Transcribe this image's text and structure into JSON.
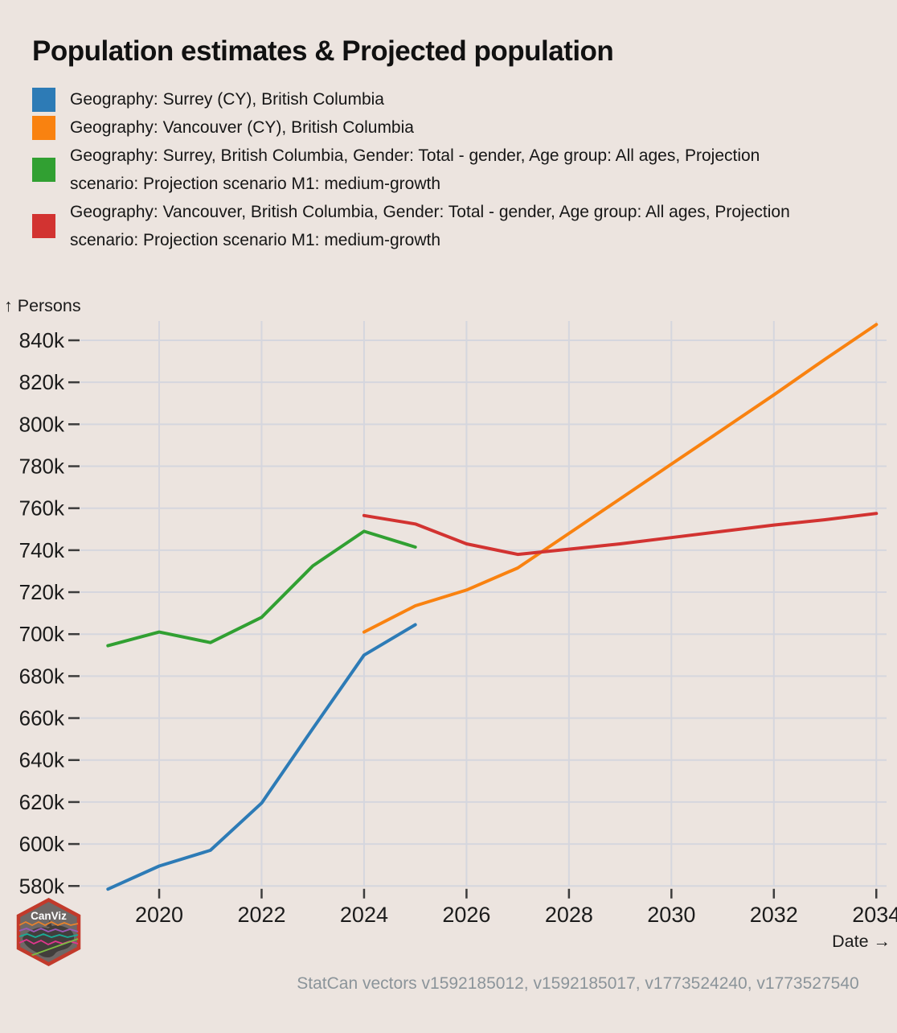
{
  "title": "Population estimates & Projected population",
  "footer": "StatCan vectors v1592185012, v1592185017, v1773524240, v1773527540",
  "logo": {
    "text": "CanViz"
  },
  "axes": {
    "y": {
      "title": "↑ Persons",
      "ticks": [
        {
          "value": 580,
          "label": "580k"
        },
        {
          "value": 600,
          "label": "600k"
        },
        {
          "value": 620,
          "label": "620k"
        },
        {
          "value": 640,
          "label": "640k"
        },
        {
          "value": 660,
          "label": "660k"
        },
        {
          "value": 680,
          "label": "680k"
        },
        {
          "value": 700,
          "label": "700k"
        },
        {
          "value": 720,
          "label": "720k"
        },
        {
          "value": 740,
          "label": "740k"
        },
        {
          "value": 760,
          "label": "760k"
        },
        {
          "value": 780,
          "label": "780k"
        },
        {
          "value": 800,
          "label": "800k"
        },
        {
          "value": 820,
          "label": "820k"
        },
        {
          "value": 840,
          "label": "840k"
        }
      ]
    },
    "x": {
      "title": "Date →",
      "ticks": [
        {
          "value": 2020,
          "label": "2020"
        },
        {
          "value": 2022,
          "label": "2022"
        },
        {
          "value": 2024,
          "label": "2024"
        },
        {
          "value": 2026,
          "label": "2026"
        },
        {
          "value": 2028,
          "label": "2028"
        },
        {
          "value": 2030,
          "label": "2030"
        },
        {
          "value": 2032,
          "label": "2032"
        },
        {
          "value": 2034,
          "label": "2034"
        }
      ]
    }
  },
  "chart_data": {
    "type": "line",
    "title": "Population estimates & Projected population",
    "xlabel": "Date",
    "ylabel": "Persons",
    "unit": "thousands of persons",
    "x_range": [
      2019,
      2034
    ],
    "ylim_k": [
      580,
      840
    ],
    "grid": true,
    "legend_position": "top-left",
    "series": [
      {
        "name": "Geography: Surrey (CY), British Columbia",
        "color": "#2d7bb6",
        "x": [
          2019,
          2020,
          2021,
          2022,
          2023,
          2024,
          2025
        ],
        "values_k": [
          578.5,
          589.5,
          597,
          619.5,
          655,
          690,
          704.5
        ]
      },
      {
        "name": "Geography: Vancouver (CY), British Columbia",
        "color": "#f98210",
        "x": [
          2024,
          2025,
          2026,
          2027,
          2028,
          2029,
          2030,
          2031,
          2032,
          2033,
          2034
        ],
        "values_k": [
          701,
          713.5,
          721,
          731.5,
          748,
          764.5,
          781,
          797.5,
          814,
          831,
          847.5
        ]
      },
      {
        "name": "Geography: Surrey, British Columbia, Gender: Total - gender, Age group: All ages, Projection scenario: Projection scenario M1: medium-growth",
        "color": "#31a032",
        "x": [
          2019,
          2020,
          2021,
          2022,
          2023,
          2024,
          2025
        ],
        "values_k": [
          694.5,
          701,
          696,
          708,
          732.5,
          749,
          741.5
        ]
      },
      {
        "name": "Geography: Vancouver, British Columbia, Gender: Total - gender, Age group: All ages, Projection scenario: Projection scenario M1: medium-growth",
        "color": "#d23331",
        "x": [
          2024,
          2025,
          2026,
          2027,
          2028,
          2029,
          2030,
          2031,
          2032,
          2033,
          2034
        ],
        "values_k": [
          756.5,
          752.5,
          743,
          738,
          740.5,
          743,
          746,
          749,
          752,
          754.5,
          757.5
        ]
      }
    ]
  }
}
